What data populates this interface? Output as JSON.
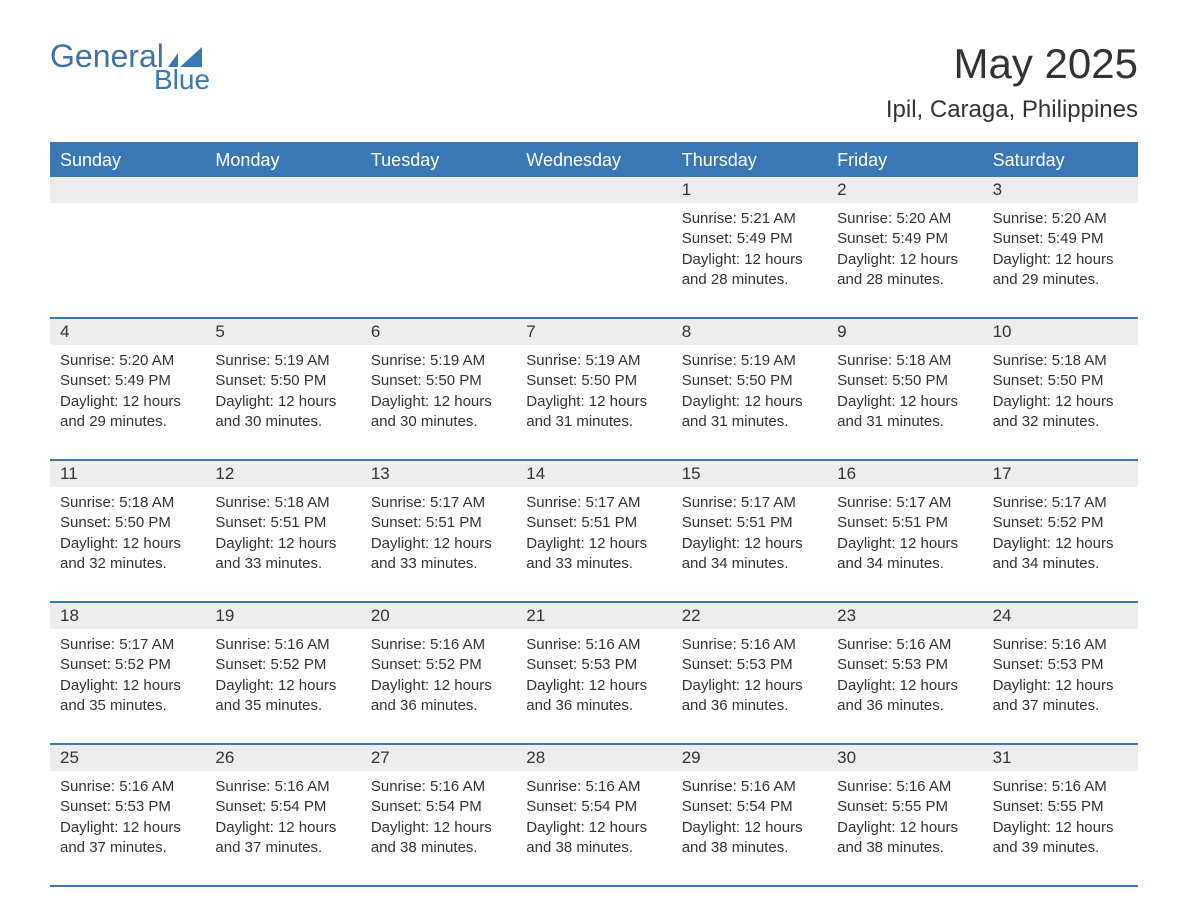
{
  "logo": {
    "text_general": "General",
    "text_blue": "Blue",
    "mark_color": "#3a78b5"
  },
  "title": {
    "month": "May 2025",
    "location": "Ipil, Caraga, Philippines"
  },
  "colors": {
    "header_bg": "#3a78b5",
    "header_text": "#ffffff",
    "row_border": "#3a78b5",
    "daynum_bg": "#ededed",
    "text": "#333333",
    "background": "#ffffff"
  },
  "fonts": {
    "month_title_size": 42,
    "location_size": 24,
    "day_header_size": 18,
    "day_number_size": 17,
    "body_size": 15
  },
  "day_headers": [
    "Sunday",
    "Monday",
    "Tuesday",
    "Wednesday",
    "Thursday",
    "Friday",
    "Saturday"
  ],
  "weeks": [
    [
      {
        "day": "",
        "sunrise": "",
        "sunset": "",
        "daylight": ""
      },
      {
        "day": "",
        "sunrise": "",
        "sunset": "",
        "daylight": ""
      },
      {
        "day": "",
        "sunrise": "",
        "sunset": "",
        "daylight": ""
      },
      {
        "day": "",
        "sunrise": "",
        "sunset": "",
        "daylight": ""
      },
      {
        "day": "1",
        "sunrise": "Sunrise: 5:21 AM",
        "sunset": "Sunset: 5:49 PM",
        "daylight": "Daylight: 12 hours and 28 minutes."
      },
      {
        "day": "2",
        "sunrise": "Sunrise: 5:20 AM",
        "sunset": "Sunset: 5:49 PM",
        "daylight": "Daylight: 12 hours and 28 minutes."
      },
      {
        "day": "3",
        "sunrise": "Sunrise: 5:20 AM",
        "sunset": "Sunset: 5:49 PM",
        "daylight": "Daylight: 12 hours and 29 minutes."
      }
    ],
    [
      {
        "day": "4",
        "sunrise": "Sunrise: 5:20 AM",
        "sunset": "Sunset: 5:49 PM",
        "daylight": "Daylight: 12 hours and 29 minutes."
      },
      {
        "day": "5",
        "sunrise": "Sunrise: 5:19 AM",
        "sunset": "Sunset: 5:50 PM",
        "daylight": "Daylight: 12 hours and 30 minutes."
      },
      {
        "day": "6",
        "sunrise": "Sunrise: 5:19 AM",
        "sunset": "Sunset: 5:50 PM",
        "daylight": "Daylight: 12 hours and 30 minutes."
      },
      {
        "day": "7",
        "sunrise": "Sunrise: 5:19 AM",
        "sunset": "Sunset: 5:50 PM",
        "daylight": "Daylight: 12 hours and 31 minutes."
      },
      {
        "day": "8",
        "sunrise": "Sunrise: 5:19 AM",
        "sunset": "Sunset: 5:50 PM",
        "daylight": "Daylight: 12 hours and 31 minutes."
      },
      {
        "day": "9",
        "sunrise": "Sunrise: 5:18 AM",
        "sunset": "Sunset: 5:50 PM",
        "daylight": "Daylight: 12 hours and 31 minutes."
      },
      {
        "day": "10",
        "sunrise": "Sunrise: 5:18 AM",
        "sunset": "Sunset: 5:50 PM",
        "daylight": "Daylight: 12 hours and 32 minutes."
      }
    ],
    [
      {
        "day": "11",
        "sunrise": "Sunrise: 5:18 AM",
        "sunset": "Sunset: 5:50 PM",
        "daylight": "Daylight: 12 hours and 32 minutes."
      },
      {
        "day": "12",
        "sunrise": "Sunrise: 5:18 AM",
        "sunset": "Sunset: 5:51 PM",
        "daylight": "Daylight: 12 hours and 33 minutes."
      },
      {
        "day": "13",
        "sunrise": "Sunrise: 5:17 AM",
        "sunset": "Sunset: 5:51 PM",
        "daylight": "Daylight: 12 hours and 33 minutes."
      },
      {
        "day": "14",
        "sunrise": "Sunrise: 5:17 AM",
        "sunset": "Sunset: 5:51 PM",
        "daylight": "Daylight: 12 hours and 33 minutes."
      },
      {
        "day": "15",
        "sunrise": "Sunrise: 5:17 AM",
        "sunset": "Sunset: 5:51 PM",
        "daylight": "Daylight: 12 hours and 34 minutes."
      },
      {
        "day": "16",
        "sunrise": "Sunrise: 5:17 AM",
        "sunset": "Sunset: 5:51 PM",
        "daylight": "Daylight: 12 hours and 34 minutes."
      },
      {
        "day": "17",
        "sunrise": "Sunrise: 5:17 AM",
        "sunset": "Sunset: 5:52 PM",
        "daylight": "Daylight: 12 hours and 34 minutes."
      }
    ],
    [
      {
        "day": "18",
        "sunrise": "Sunrise: 5:17 AM",
        "sunset": "Sunset: 5:52 PM",
        "daylight": "Daylight: 12 hours and 35 minutes."
      },
      {
        "day": "19",
        "sunrise": "Sunrise: 5:16 AM",
        "sunset": "Sunset: 5:52 PM",
        "daylight": "Daylight: 12 hours and 35 minutes."
      },
      {
        "day": "20",
        "sunrise": "Sunrise: 5:16 AM",
        "sunset": "Sunset: 5:52 PM",
        "daylight": "Daylight: 12 hours and 36 minutes."
      },
      {
        "day": "21",
        "sunrise": "Sunrise: 5:16 AM",
        "sunset": "Sunset: 5:53 PM",
        "daylight": "Daylight: 12 hours and 36 minutes."
      },
      {
        "day": "22",
        "sunrise": "Sunrise: 5:16 AM",
        "sunset": "Sunset: 5:53 PM",
        "daylight": "Daylight: 12 hours and 36 minutes."
      },
      {
        "day": "23",
        "sunrise": "Sunrise: 5:16 AM",
        "sunset": "Sunset: 5:53 PM",
        "daylight": "Daylight: 12 hours and 36 minutes."
      },
      {
        "day": "24",
        "sunrise": "Sunrise: 5:16 AM",
        "sunset": "Sunset: 5:53 PM",
        "daylight": "Daylight: 12 hours and 37 minutes."
      }
    ],
    [
      {
        "day": "25",
        "sunrise": "Sunrise: 5:16 AM",
        "sunset": "Sunset: 5:53 PM",
        "daylight": "Daylight: 12 hours and 37 minutes."
      },
      {
        "day": "26",
        "sunrise": "Sunrise: 5:16 AM",
        "sunset": "Sunset: 5:54 PM",
        "daylight": "Daylight: 12 hours and 37 minutes."
      },
      {
        "day": "27",
        "sunrise": "Sunrise: 5:16 AM",
        "sunset": "Sunset: 5:54 PM",
        "daylight": "Daylight: 12 hours and 38 minutes."
      },
      {
        "day": "28",
        "sunrise": "Sunrise: 5:16 AM",
        "sunset": "Sunset: 5:54 PM",
        "daylight": "Daylight: 12 hours and 38 minutes."
      },
      {
        "day": "29",
        "sunrise": "Sunrise: 5:16 AM",
        "sunset": "Sunset: 5:54 PM",
        "daylight": "Daylight: 12 hours and 38 minutes."
      },
      {
        "day": "30",
        "sunrise": "Sunrise: 5:16 AM",
        "sunset": "Sunset: 5:55 PM",
        "daylight": "Daylight: 12 hours and 38 minutes."
      },
      {
        "day": "31",
        "sunrise": "Sunrise: 5:16 AM",
        "sunset": "Sunset: 5:55 PM",
        "daylight": "Daylight: 12 hours and 39 minutes."
      }
    ]
  ]
}
